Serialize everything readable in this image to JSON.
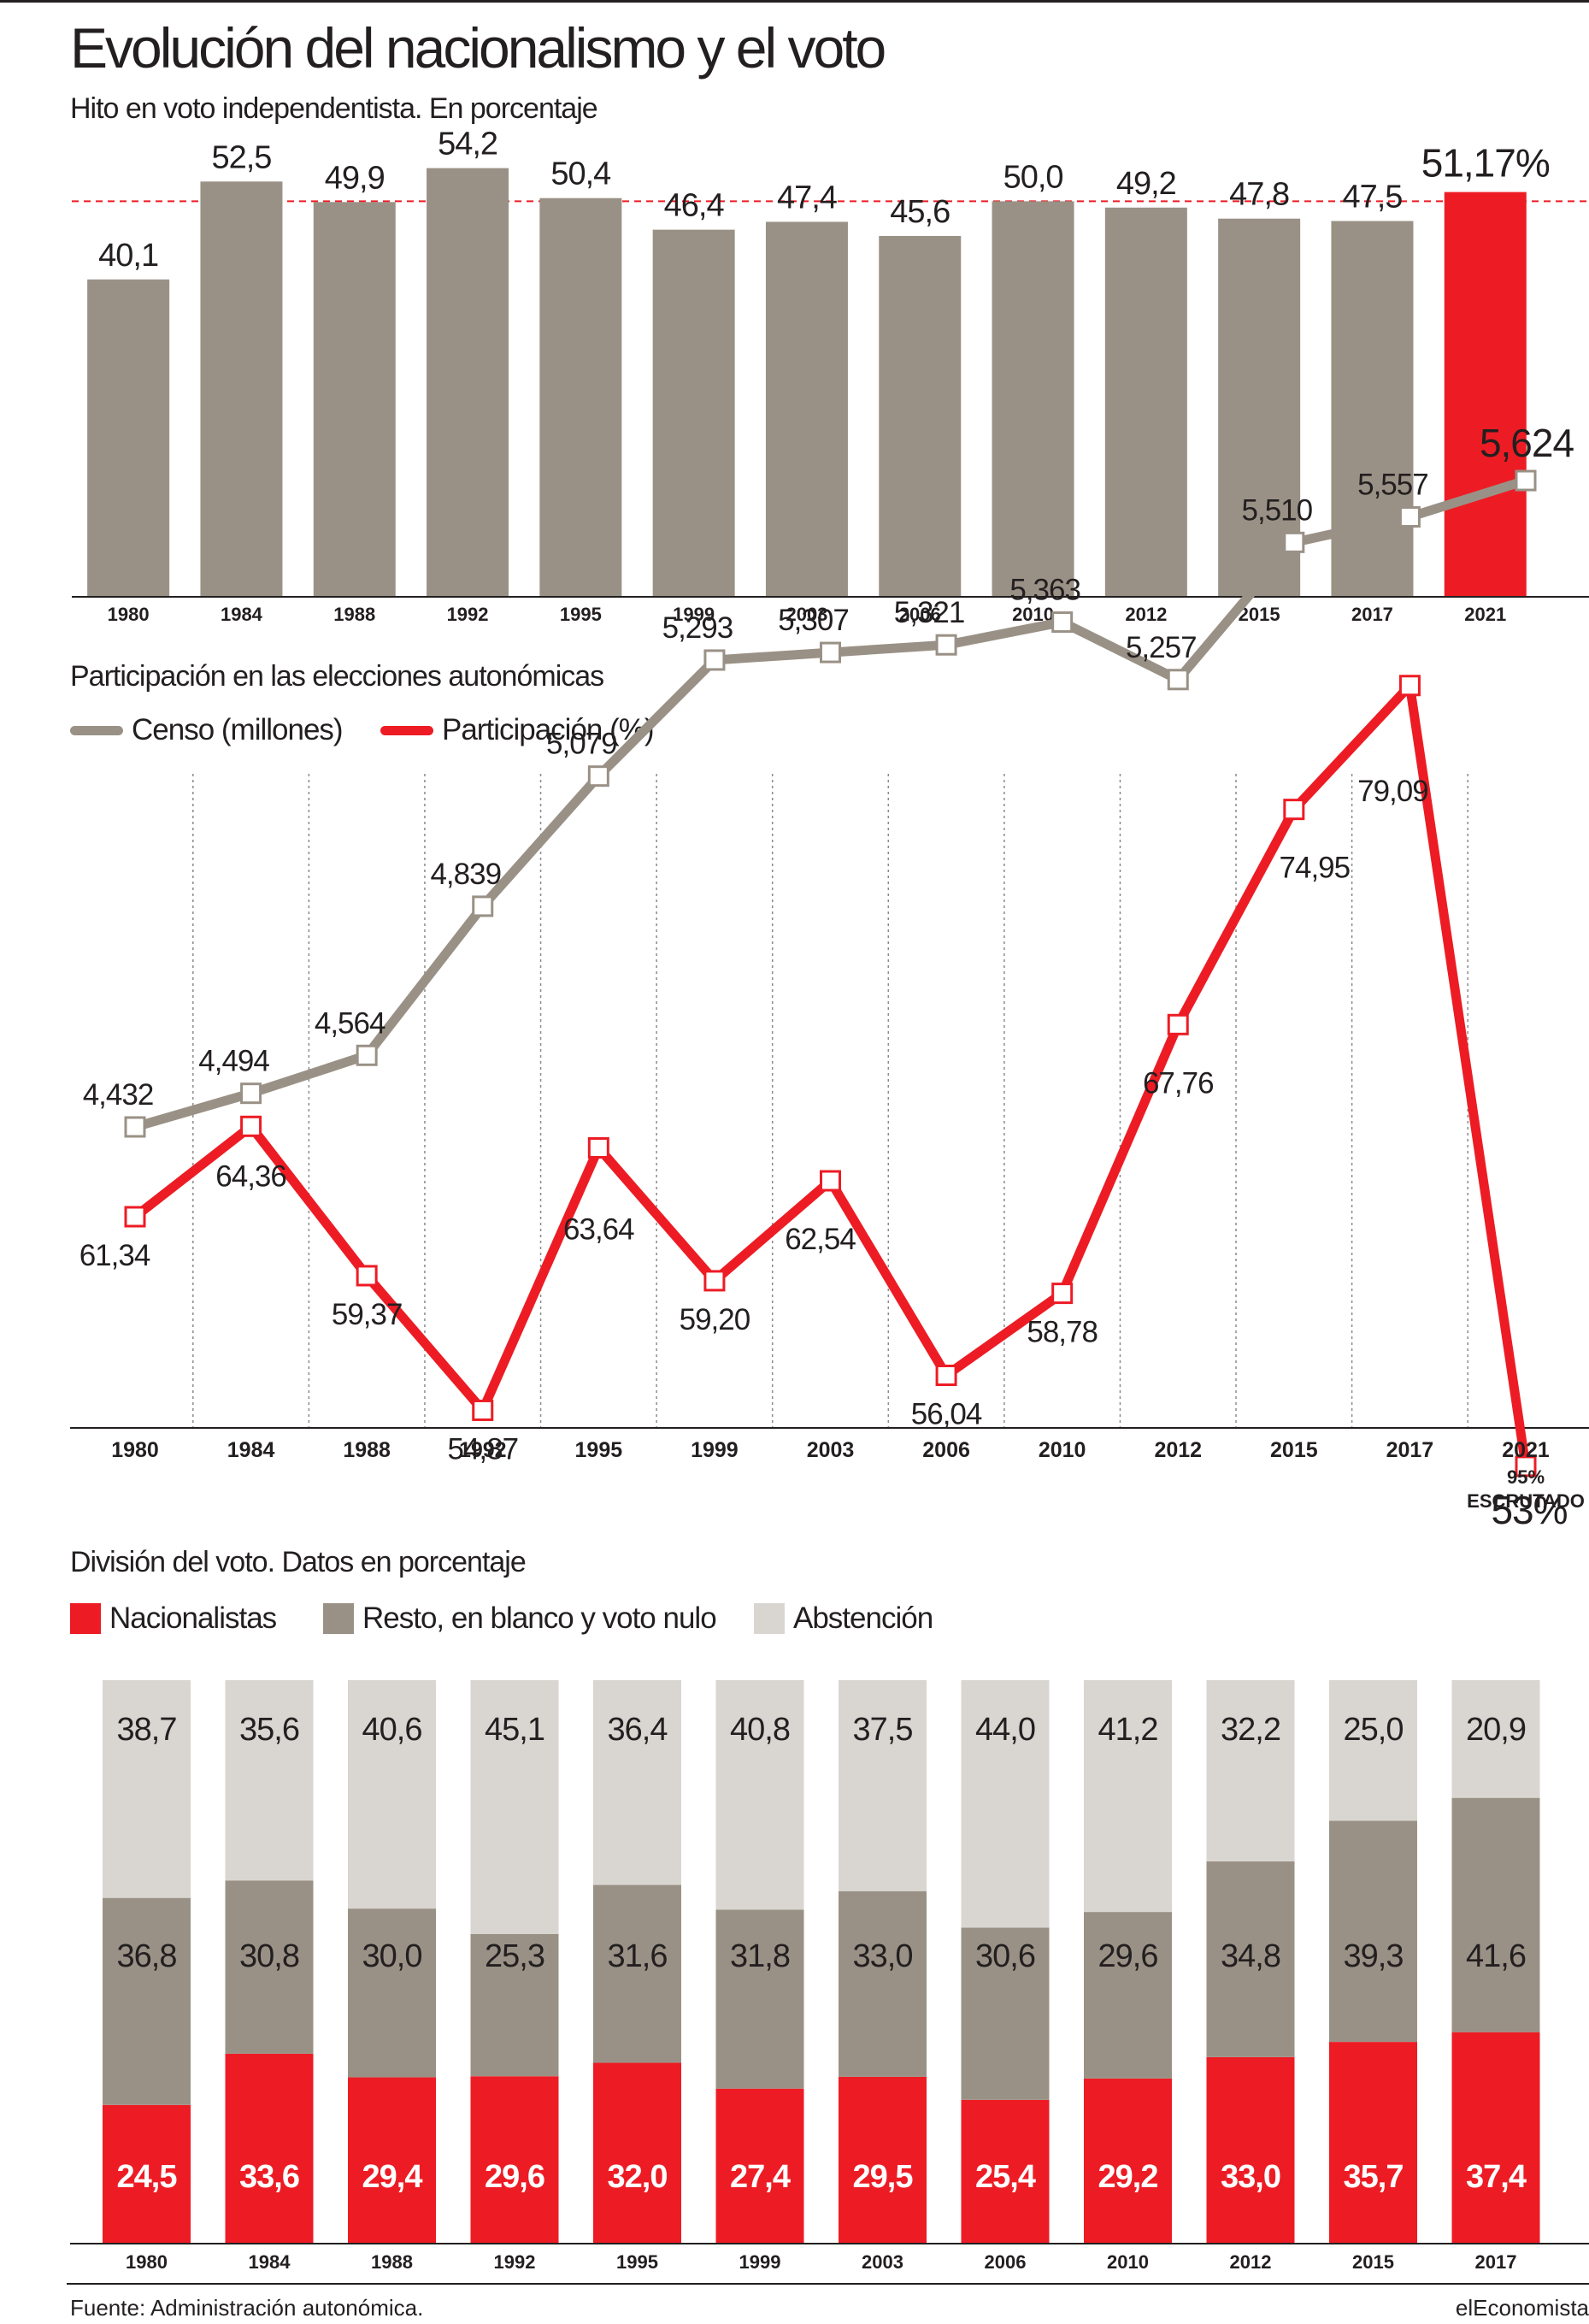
{
  "title": "Evolución del nacionalismo y el voto",
  "colors": {
    "gray": "#9a9186",
    "red": "#ed1c24",
    "light": "#d9d6d1",
    "text": "#231f20"
  },
  "chart_data": [
    {
      "type": "bar",
      "subtitle": "Hito en voto independentista. En porcentaje",
      "categories": [
        "1980",
        "1984",
        "1988",
        "1992",
        "1995",
        "1999",
        "2003",
        "2006",
        "2010",
        "2012",
        "2015",
        "2017",
        "2021"
      ],
      "values": [
        40.1,
        52.5,
        49.9,
        54.2,
        50.4,
        46.4,
        47.4,
        45.6,
        50.0,
        49.2,
        47.8,
        47.5,
        51.17
      ],
      "labels": [
        "40,1",
        "52,5",
        "49,9",
        "54,2",
        "50,4",
        "46,4",
        "47,4",
        "45,6",
        "50,0",
        "49,2",
        "47,8",
        "47,5",
        "51,17%"
      ],
      "highlight_index": 12,
      "reference_line": 50,
      "ylim": [
        0,
        56
      ]
    },
    {
      "type": "line",
      "subtitle": "Participación en las elecciones autonómicas",
      "categories": [
        "1980",
        "1984",
        "1988",
        "1992",
        "1995",
        "1999",
        "2003",
        "2006",
        "2010",
        "2012",
        "2015",
        "2017",
        "2021"
      ],
      "footnote": [
        "95%",
        "ESCRUTADO"
      ],
      "series": [
        {
          "name": "Censo (millones)",
          "values": [
            4.432,
            4.494,
            4.564,
            4.839,
            5.079,
            5.293,
            5.307,
            5.321,
            5.363,
            5.257,
            5.51,
            5.557,
            5.624
          ],
          "labels": [
            "4,432",
            "4,494",
            "4,564",
            "4,839",
            "5,079",
            "5,293",
            "5,307",
            "5,321",
            "5,363",
            "5,257",
            "5,510",
            "5,557",
            "5,624"
          ]
        },
        {
          "name": "Participación (%)",
          "values": [
            61.34,
            64.36,
            59.37,
            54.87,
            63.64,
            59.2,
            62.54,
            56.04,
            58.78,
            67.76,
            74.95,
            79.09,
            53
          ],
          "labels": [
            "61,34",
            "64,36",
            "59,37",
            "54,87",
            "63,64",
            "59,20",
            "62,54",
            "56,04",
            "58,78",
            "67,76",
            "74,95",
            "79,09",
            "53%"
          ]
        }
      ]
    },
    {
      "type": "bar",
      "stacked": true,
      "subtitle": "División del voto. Datos en porcentaje",
      "categories": [
        "1980",
        "1984",
        "1988",
        "1992",
        "1995",
        "1999",
        "2003",
        "2006",
        "2010",
        "2012",
        "2015",
        "2017"
      ],
      "series": [
        {
          "name": "Nacionalistas",
          "values": [
            24.5,
            33.6,
            29.4,
            29.6,
            32.0,
            27.4,
            29.5,
            25.4,
            29.2,
            33.0,
            35.7,
            37.4
          ],
          "labels": [
            "24,5",
            "33,6",
            "29,4",
            "29,6",
            "32,0",
            "27,4",
            "29,5",
            "25,4",
            "29,2",
            "33,0",
            "35,7",
            "37,4"
          ]
        },
        {
          "name": "Resto, en blanco y voto nulo",
          "values": [
            36.8,
            30.8,
            30.0,
            25.3,
            31.6,
            31.8,
            33.0,
            30.6,
            29.6,
            34.8,
            39.3,
            41.6
          ],
          "labels": [
            "36,8",
            "30,8",
            "30,0",
            "25,3",
            "31,6",
            "31,8",
            "33,0",
            "30,6",
            "29,6",
            "34,8",
            "39,3",
            "41,6"
          ]
        },
        {
          "name": "Abstención",
          "values": [
            38.7,
            35.6,
            40.6,
            45.1,
            36.4,
            40.8,
            37.5,
            44.0,
            41.2,
            32.2,
            25.0,
            20.9
          ],
          "labels": [
            "38,7",
            "35,6",
            "40,6",
            "45,1",
            "36,4",
            "40,8",
            "37,5",
            "44,0",
            "41,2",
            "32,2",
            "25,0",
            "20,9"
          ]
        }
      ]
    }
  ],
  "footer": {
    "source": "Fuente: Administración autonómica.",
    "brand": "elEconomista"
  }
}
